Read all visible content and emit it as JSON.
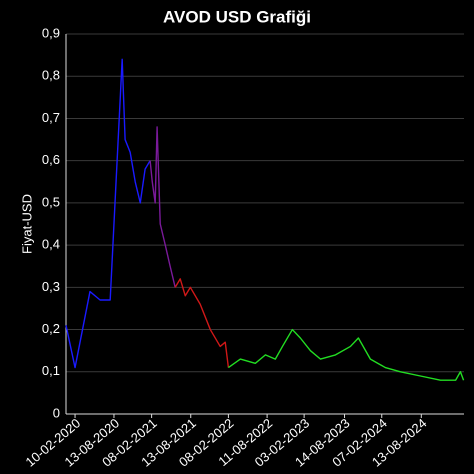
{
  "chart_data": {
    "type": "line",
    "title": "AVOD USD Grafiği",
    "y_label": "Fiyat-USD",
    "xlim": [
      "2019-12-29",
      "2025-03-04"
    ],
    "xticks": [
      {
        "value": "2020-02-10",
        "label": "10-02-2020"
      },
      {
        "value": "2020-08-13",
        "label": "13-08-2020"
      },
      {
        "value": "2021-02-08",
        "label": "08-02-2021"
      },
      {
        "value": "2021-08-13",
        "label": "13-08-2021"
      },
      {
        "value": "2022-02-08",
        "label": "08-02-2022"
      },
      {
        "value": "2022-08-11",
        "label": "11-08-2022"
      },
      {
        "value": "2023-02-03",
        "label": "03-02-2023"
      },
      {
        "value": "2023-08-14",
        "label": "14-08-2023"
      },
      {
        "value": "2024-02-07",
        "label": "07-02-2024"
      },
      {
        "value": "2024-08-13",
        "label": "13-08-2024"
      }
    ],
    "ylim": [
      0,
      0.9
    ],
    "yticks": [
      0,
      {
        "value": 0.1,
        "label": "0,1"
      },
      {
        "value": 0.2,
        "label": "0,2"
      },
      {
        "value": 0.3,
        "label": "0,3"
      },
      {
        "value": 0.4,
        "label": "0,4"
      },
      {
        "value": 0.5,
        "label": "0,5"
      },
      {
        "value": 0.6,
        "label": "0,6"
      },
      {
        "value": 0.7,
        "label": "0,7"
      },
      {
        "value": 0.8,
        "label": "0,8"
      },
      {
        "value": 0.9,
        "label": "0,9"
      }
    ],
    "grid": true,
    "series": [
      {
        "color": "#1a1aff",
        "x": [
          "2019-12-29",
          "2020-02-10",
          "2020-04-21",
          "2020-06-08",
          "2020-07-26",
          "2020-08-18",
          "2020-09-21",
          "2020-10-05",
          "2020-10-29",
          "2020-11-22",
          "2020-12-16",
          "2021-01-08",
          "2021-02-01"
        ],
        "values": [
          0.21,
          0.11,
          0.29,
          0.27,
          0.27,
          0.5,
          0.84,
          0.65,
          0.62,
          0.55,
          0.5,
          0.58,
          0.6
        ]
      },
      {
        "color": "#7a1a9a",
        "x": [
          "2021-02-01",
          "2021-02-11",
          "2021-02-25",
          "2021-03-06",
          "2021-03-21",
          "2021-04-14",
          "2021-05-07",
          "2021-05-31"
        ],
        "values": [
          0.6,
          0.55,
          0.5,
          0.68,
          0.45,
          0.4,
          0.35,
          0.3
        ]
      },
      {
        "color": "#d01818",
        "x": [
          "2021-05-31",
          "2021-06-24",
          "2021-07-18",
          "2021-08-11",
          "2021-09-27",
          "2021-11-14",
          "2021-12-31",
          "2022-01-24",
          "2022-02-08"
        ],
        "values": [
          0.3,
          0.32,
          0.28,
          0.3,
          0.26,
          0.2,
          0.16,
          0.17,
          0.11
        ]
      },
      {
        "color": "#22dd22",
        "x": [
          "2022-02-08",
          "2022-04-06",
          "2022-06-16",
          "2022-08-03",
          "2022-09-19",
          "2022-10-23",
          "2022-12-09",
          "2023-01-16",
          "2023-03-05",
          "2023-04-22",
          "2023-07-02",
          "2023-09-11",
          "2023-10-19",
          "2023-12-15",
          "2024-02-24",
          "2024-05-06",
          "2024-08-09",
          "2024-11-12",
          "2025-01-23",
          "2025-02-15",
          "2025-03-02"
        ],
        "values": [
          0.11,
          0.13,
          0.12,
          0.14,
          0.13,
          0.16,
          0.2,
          0.18,
          0.15,
          0.13,
          0.14,
          0.16,
          0.18,
          0.13,
          0.11,
          0.1,
          0.09,
          0.08,
          0.08,
          0.1,
          0.08
        ]
      }
    ]
  }
}
